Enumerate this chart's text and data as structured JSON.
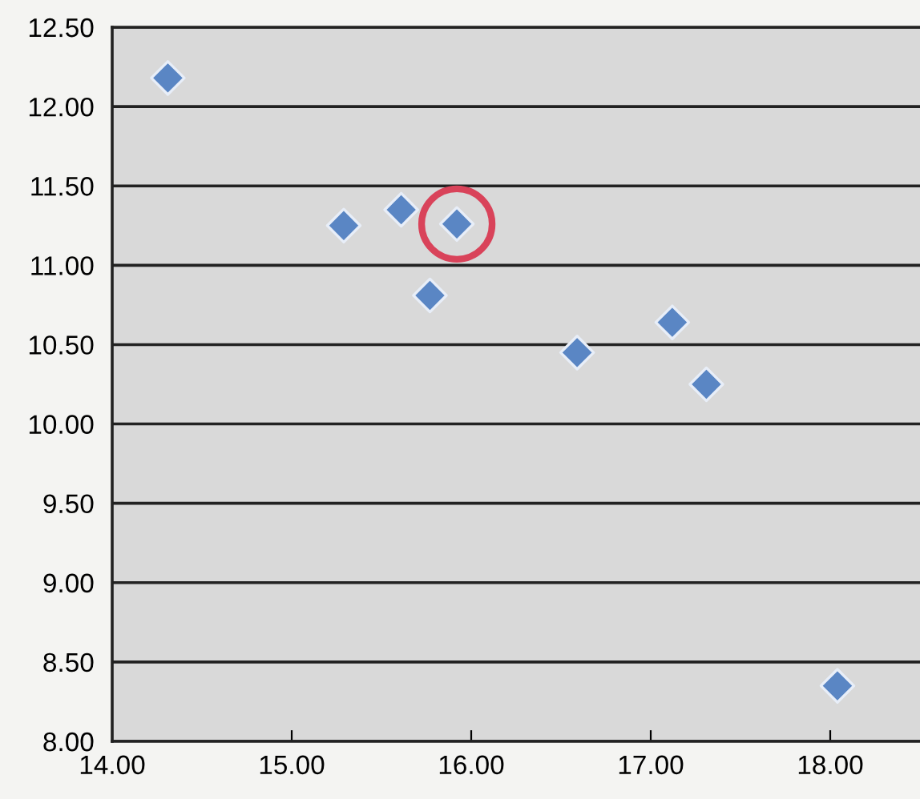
{
  "chart_data": {
    "type": "scatter",
    "marker": "diamond",
    "grid": "y",
    "x": [
      14.31,
      15.29,
      15.61,
      15.92,
      15.77,
      16.59,
      17.12,
      17.31,
      18.04
    ],
    "series": [
      {
        "color": "#5a86c4",
        "values": [
          12.18,
          11.25,
          11.35,
          11.26,
          10.81,
          10.45,
          10.64,
          10.25,
          8.35
        ]
      }
    ],
    "xlim": [
      14,
      18.5
    ],
    "ylim": [
      8,
      12.5
    ],
    "xticks": [
      {
        "value": 14,
        "label": "14.00"
      },
      {
        "value": 15,
        "label": "15.00"
      },
      {
        "value": 16,
        "label": "16.00"
      },
      {
        "value": 17,
        "label": "17.00"
      },
      {
        "value": 18,
        "label": "18.00"
      }
    ],
    "yticks": [
      {
        "value": 8,
        "label": "8.00"
      },
      {
        "value": 8.5,
        "label": "8.50"
      },
      {
        "value": 9,
        "label": "9.00"
      },
      {
        "value": 9.5,
        "label": "9.50"
      },
      {
        "value": 10,
        "label": "10.00"
      },
      {
        "value": 10.5,
        "label": "10.50"
      },
      {
        "value": 11,
        "label": "11.00"
      },
      {
        "value": 11.5,
        "label": "11.50"
      },
      {
        "value": 12,
        "label": "12.00"
      },
      {
        "value": 12.5,
        "label": "12.50"
      }
    ]
  }
}
